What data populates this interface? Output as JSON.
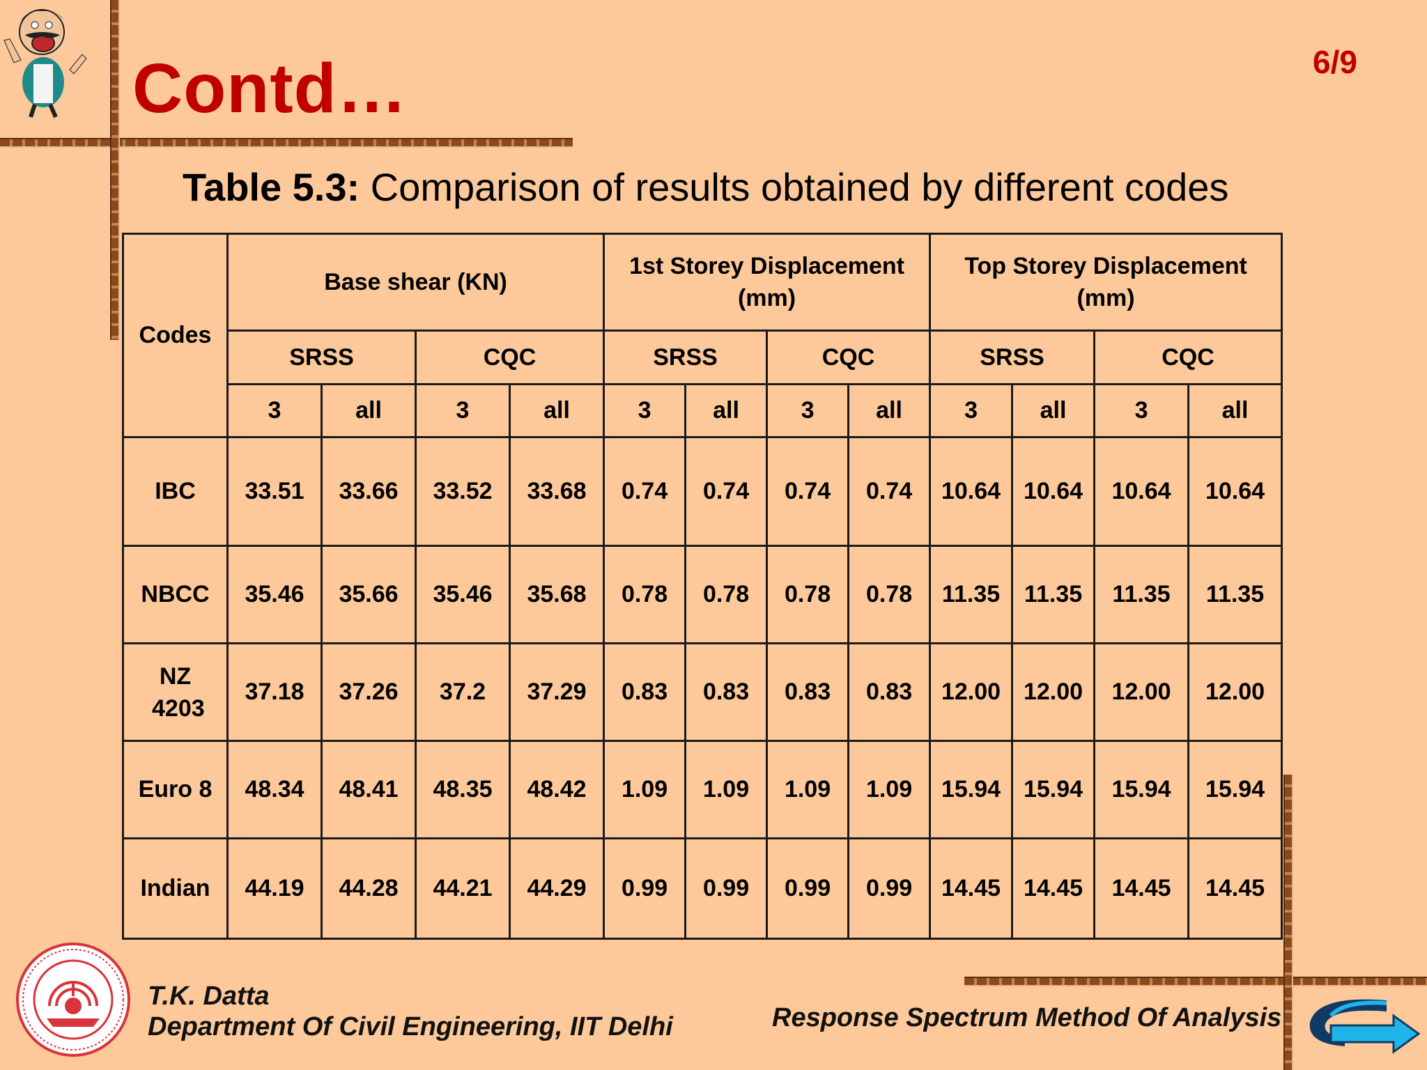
{
  "header": {
    "title": "Contd…",
    "page": "6/9"
  },
  "table": {
    "caption_bold": "Table 5.3:",
    "caption_text": " Comparison of results obtained by different codes",
    "corner": "Codes",
    "groups": [
      "Base shear (KN)",
      "1st Storey Displacement (mm)",
      "Top Storey Displacement (mm)"
    ],
    "methods": [
      "SRSS",
      "CQC",
      "SRSS",
      "CQC",
      "SRSS",
      "CQC"
    ],
    "modes": [
      "3",
      "all",
      "3",
      "all",
      "3",
      "all",
      "3",
      "all",
      "3",
      "all",
      "3",
      "all"
    ],
    "rows": [
      {
        "code": "IBC",
        "values": [
          "33.51",
          "33.66",
          "33.52",
          "33.68",
          "0.74",
          "0.74",
          "0.74",
          "0.74",
          "10.64",
          "10.64",
          "10.64",
          "10.64"
        ]
      },
      {
        "code": "NBCC",
        "values": [
          "35.46",
          "35.66",
          "35.46",
          "35.68",
          "0.78",
          "0.78",
          "0.78",
          "0.78",
          "11.35",
          "11.35",
          "11.35",
          "11.35"
        ]
      },
      {
        "code": "NZ 4203",
        "values": [
          "37.18",
          "37.26",
          "37.2",
          "37.29",
          "0.83",
          "0.83",
          "0.83",
          "0.83",
          "12.00",
          "12.00",
          "12.00",
          "12.00"
        ]
      },
      {
        "code": "Euro 8",
        "values": [
          "48.34",
          "48.41",
          "48.35",
          "48.42",
          "1.09",
          "1.09",
          "1.09",
          "1.09",
          "15.94",
          "15.94",
          "15.94",
          "15.94"
        ]
      },
      {
        "code": "Indian",
        "values": [
          "44.19",
          "44.28",
          "44.21",
          "44.29",
          "0.99",
          "0.99",
          "0.99",
          "0.99",
          "14.45",
          "14.45",
          "14.45",
          "14.45"
        ]
      }
    ]
  },
  "footer": {
    "author": "T.K. Datta",
    "department": "Department Of Civil Engineering, IIT Delhi",
    "subject": "Response Spectrum Method Of Analysis"
  },
  "icons": {
    "mascot": "cartoon-mascot-icon",
    "seal": "iit-delhi-seal-icon",
    "next": "next-arrow-icon"
  },
  "colors": {
    "background": "#fdc99b",
    "title": "#c00000",
    "rail": "#8a4a1e"
  }
}
